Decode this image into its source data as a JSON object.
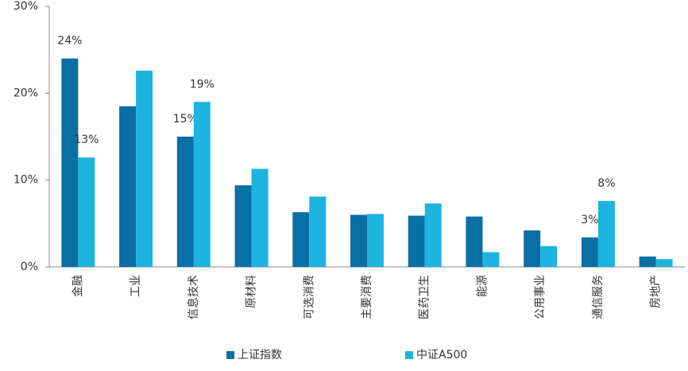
{
  "chart_data": {
    "type": "bar",
    "categories": [
      "金融",
      "工业",
      "信息技术",
      "原材料",
      "可选消费",
      "主要消费",
      "医药卫生",
      "能源",
      "公用事业",
      "通信服务",
      "房地产"
    ],
    "series": [
      {
        "name": "上证指数",
        "color": "#0a6fa5",
        "values": [
          24,
          18.5,
          15,
          9.4,
          6.3,
          6.0,
          5.9,
          5.8,
          4.2,
          3.4,
          1.2
        ],
        "value_labels": [
          "24%",
          null,
          "15%",
          null,
          null,
          null,
          null,
          null,
          null,
          "3%",
          null
        ]
      },
      {
        "name": "中证A500",
        "color": "#1db4e0",
        "values": [
          12.6,
          22.6,
          19.0,
          11.3,
          8.1,
          6.1,
          7.3,
          1.7,
          2.4,
          7.6,
          0.9
        ],
        "value_labels": [
          "13%",
          null,
          "19%",
          null,
          null,
          null,
          null,
          null,
          null,
          "8%",
          null
        ]
      }
    ],
    "ylim": [
      0,
      30
    ],
    "yticks": [
      {
        "value": 0,
        "label": "0%"
      },
      {
        "value": 10,
        "label": "10%"
      },
      {
        "value": 20,
        "label": "20%"
      },
      {
        "value": 30,
        "label": "30%"
      }
    ],
    "grid": false,
    "legend": "bottom"
  }
}
